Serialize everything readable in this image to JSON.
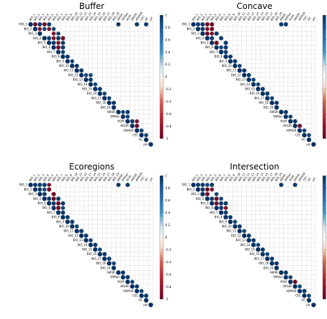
{
  "chart_data": [
    {
      "type": "heatmap",
      "subtype": "correlogram-upper-triangle",
      "title": "Buffer",
      "variables": [
        "BIO_1",
        "BIO_2",
        "BIO_3",
        "BIO_4",
        "BIO_5",
        "BIO_6",
        "BIO_7",
        "BIO_8",
        "BIO_9",
        "BIO_10",
        "BIO_11",
        "BIO_12",
        "BIO_13",
        "BIO_14",
        "BIO_15",
        "BIO_16",
        "BIO_17",
        "BIO_18",
        "BIO_19",
        "AWSR",
        "SRMax",
        "RGIR",
        "ARGIR",
        "ARMGR",
        "CEC",
        "OC",
        "pH"
      ],
      "strong_pairs": [
        {
          "pair": [
            0,
            1
          ],
          "r": -0.95
        },
        {
          "pair": [
            0,
            2
          ],
          "r": 0.95
        },
        {
          "pair": [
            0,
            3
          ],
          "r": -0.95
        },
        {
          "pair": [
            0,
            4
          ],
          "r": 0.95
        },
        {
          "pair": [
            1,
            2
          ],
          "r": -0.9
        },
        {
          "pair": [
            1,
            3
          ],
          "r": 0.9
        },
        {
          "pair": [
            1,
            4
          ],
          "r": -0.9
        },
        {
          "pair": [
            1,
            5
          ],
          "r": 0.9
        },
        {
          "pair": [
            2,
            5
          ],
          "r": -0.9
        },
        {
          "pair": [
            2,
            6
          ],
          "r": 0.9
        },
        {
          "pair": [
            3,
            4
          ],
          "r": 0.95
        },
        {
          "pair": [
            3,
            5
          ],
          "r": -0.9
        },
        {
          "pair": [
            3,
            6
          ],
          "r": 0.95
        },
        {
          "pair": [
            3,
            7
          ],
          "r": -0.95
        },
        {
          "pair": [
            4,
            5
          ],
          "r": 0.95
        },
        {
          "pair": [
            4,
            6
          ],
          "r": -0.9
        },
        {
          "pair": [
            4,
            7
          ],
          "r": 0.95
        },
        {
          "pair": [
            5,
            6
          ],
          "r": -0.95
        },
        {
          "pair": [
            5,
            7
          ],
          "r": 0.95
        },
        {
          "pair": [
            6,
            7
          ],
          "r": 0.9
        },
        {
          "pair": [
            7,
            8
          ],
          "r": 0.95
        },
        {
          "pair": [
            8,
            9
          ],
          "r": 0.9
        },
        {
          "pair": [
            9,
            10
          ],
          "r": 0.95
        },
        {
          "pair": [
            10,
            11
          ],
          "r": 0.95
        },
        {
          "pair": [
            11,
            12
          ],
          "r": 0.9
        },
        {
          "pair": [
            11,
            13
          ],
          "r": 0.9
        },
        {
          "pair": [
            12,
            13
          ],
          "r": 0.95
        },
        {
          "pair": [
            13,
            14
          ],
          "r": 0.9
        },
        {
          "pair": [
            14,
            15
          ],
          "r": 0.95
        },
        {
          "pair": [
            15,
            16
          ],
          "r": 0.9
        },
        {
          "pair": [
            16,
            17
          ],
          "r": 0.9
        },
        {
          "pair": [
            17,
            18
          ],
          "r": 0.95
        },
        {
          "pair": [
            19,
            20
          ],
          "r": 0.9
        },
        {
          "pair": [
            19,
            21
          ],
          "r": 0.95
        },
        {
          "pair": [
            20,
            21
          ],
          "r": 0.9
        },
        {
          "pair": [
            21,
            22
          ],
          "r": 0.95
        },
        {
          "pair": [
            21,
            23
          ],
          "r": -0.9
        },
        {
          "pair": [
            22,
            23
          ],
          "r": -0.95
        },
        {
          "pair": [
            23,
            24
          ],
          "r": 0.9
        },
        {
          "pair": [
            24,
            25
          ],
          "r": 0.9
        },
        {
          "pair": [
            0,
            19
          ],
          "r": 0.95
        },
        {
          "pair": [
            0,
            23
          ],
          "r": 0.95
        },
        {
          "pair": [
            0,
            25
          ],
          "r": 0.95
        }
      ],
      "colorbar": {
        "ticks": [
          "1",
          "0.8",
          "0.6",
          "0.4",
          "0.2",
          "0",
          "-0.2",
          "-0.4",
          "-0.6",
          "-0.8",
          "-1"
        ],
        "min": -1,
        "max": 1
      }
    },
    {
      "type": "heatmap",
      "subtype": "correlogram-upper-triangle",
      "title": "Concave",
      "variables": [
        "BIO_1",
        "BIO_2",
        "BIO_3",
        "BIO_4",
        "BIO_5",
        "BIO_6",
        "BIO_7",
        "BIO_8",
        "BIO_9",
        "BIO_10",
        "BIO_11",
        "BIO_12",
        "BIO_13",
        "BIO_14",
        "BIO_15",
        "BIO_16",
        "BIO_17",
        "BIO_18",
        "BIO_19",
        "AWSR",
        "SRMax",
        "RGIR",
        "ARGIR",
        "ARMGR",
        "CEC",
        "OC",
        "pH"
      ],
      "strong_pairs": [
        {
          "pair": [
            0,
            1
          ],
          "r": 0.95
        },
        {
          "pair": [
            0,
            2
          ],
          "r": 0.95
        },
        {
          "pair": [
            0,
            3
          ],
          "r": -0.95
        },
        {
          "pair": [
            0,
            4
          ],
          "r": -0.95
        },
        {
          "pair": [
            1,
            2
          ],
          "r": 0.95
        },
        {
          "pair": [
            1,
            3
          ],
          "r": -0.9
        },
        {
          "pair": [
            1,
            4
          ],
          "r": -0.95
        },
        {
          "pair": [
            2,
            3
          ],
          "r": -0.95
        },
        {
          "pair": [
            2,
            4
          ],
          "r": -0.9
        },
        {
          "pair": [
            2,
            5
          ],
          "r": 0.95
        },
        {
          "pair": [
            3,
            4
          ],
          "r": 0.95
        },
        {
          "pair": [
            3,
            6
          ],
          "r": 0.95
        },
        {
          "pair": [
            4,
            5
          ],
          "r": -0.95
        },
        {
          "pair": [
            4,
            7
          ],
          "r": 0.95
        },
        {
          "pair": [
            5,
            6
          ],
          "r": 0.9
        },
        {
          "pair": [
            5,
            7
          ],
          "r": 0.95
        },
        {
          "pair": [
            6,
            7
          ],
          "r": 0.95
        },
        {
          "pair": [
            7,
            8
          ],
          "r": 0.95
        },
        {
          "pair": [
            8,
            9
          ],
          "r": 0.95
        },
        {
          "pair": [
            9,
            10
          ],
          "r": 0.9
        },
        {
          "pair": [
            10,
            11
          ],
          "r": 0.95
        },
        {
          "pair": [
            11,
            12
          ],
          "r": 0.95
        },
        {
          "pair": [
            12,
            13
          ],
          "r": 0.9
        },
        {
          "pair": [
            13,
            14
          ],
          "r": 0.9
        },
        {
          "pair": [
            14,
            15
          ],
          "r": 0.95
        },
        {
          "pair": [
            15,
            16
          ],
          "r": 0.95
        },
        {
          "pair": [
            16,
            17
          ],
          "r": 0.9
        },
        {
          "pair": [
            17,
            18
          ],
          "r": 0.95
        },
        {
          "pair": [
            19,
            20
          ],
          "r": 0.95
        },
        {
          "pair": [
            20,
            21
          ],
          "r": 0.9
        },
        {
          "pair": [
            21,
            22
          ],
          "r": 0.95
        },
        {
          "pair": [
            22,
            23
          ],
          "r": -0.95
        },
        {
          "pair": [
            23,
            24
          ],
          "r": 0.9
        },
        {
          "pair": [
            24,
            25
          ],
          "r": 0.9
        },
        {
          "pair": [
            0,
            19
          ],
          "r": 0.95
        },
        {
          "pair": [
            0,
            20
          ],
          "r": 0.95
        }
      ],
      "colorbar": {
        "ticks": [
          "1",
          "0.8",
          "0.6",
          "0.4",
          "0.2",
          "0",
          "-0.2",
          "-0.4",
          "-0.6",
          "-0.8",
          "-1"
        ],
        "min": -1,
        "max": 1
      }
    },
    {
      "type": "heatmap",
      "subtype": "correlogram-upper-triangle",
      "title": "Ecoregions",
      "variables": [
        "BIO_1",
        "BIO_2",
        "BIO_3",
        "BIO_4",
        "BIO_5",
        "BIO_6",
        "BIO_7",
        "BIO_8",
        "BIO_9",
        "BIO_10",
        "BIO_11",
        "BIO_12",
        "BIO_13",
        "BIO_14",
        "BIO_15",
        "BIO_16",
        "BIO_17",
        "BIO_18",
        "BIO_19",
        "AWSR",
        "SRMax",
        "RGIR",
        "ARGIR",
        "ARMGR",
        "CEC",
        "OC",
        "pH"
      ],
      "strong_pairs": [
        {
          "pair": [
            0,
            1
          ],
          "r": 0.95
        },
        {
          "pair": [
            0,
            2
          ],
          "r": 0.95
        },
        {
          "pair": [
            0,
            3
          ],
          "r": 0.95
        },
        {
          "pair": [
            0,
            4
          ],
          "r": -0.9
        },
        {
          "pair": [
            1,
            2
          ],
          "r": 0.95
        },
        {
          "pair": [
            1,
            3
          ],
          "r": 0.9
        },
        {
          "pair": [
            1,
            4
          ],
          "r": -0.95
        },
        {
          "pair": [
            2,
            3
          ],
          "r": 0.95
        },
        {
          "pair": [
            2,
            5
          ],
          "r": -0.95
        },
        {
          "pair": [
            3,
            4
          ],
          "r": 0.95
        },
        {
          "pair": [
            3,
            5
          ],
          "r": -0.95
        },
        {
          "pair": [
            3,
            6
          ],
          "r": 0.95
        },
        {
          "pair": [
            4,
            5
          ],
          "r": 0.95
        },
        {
          "pair": [
            4,
            6
          ],
          "r": -0.95
        },
        {
          "pair": [
            4,
            7
          ],
          "r": 0.95
        },
        {
          "pair": [
            5,
            6
          ],
          "r": -0.95
        },
        {
          "pair": [
            5,
            7
          ],
          "r": 0.9
        },
        {
          "pair": [
            6,
            7
          ],
          "r": 0.95
        },
        {
          "pair": [
            7,
            8
          ],
          "r": 0.95
        },
        {
          "pair": [
            8,
            9
          ],
          "r": 0.95
        },
        {
          "pair": [
            9,
            10
          ],
          "r": 0.9
        },
        {
          "pair": [
            10,
            11
          ],
          "r": 0.95
        },
        {
          "pair": [
            11,
            12
          ],
          "r": 0.95
        },
        {
          "pair": [
            12,
            13
          ],
          "r": 0.9
        },
        {
          "pair": [
            13,
            14
          ],
          "r": 0.95
        },
        {
          "pair": [
            14,
            15
          ],
          "r": 0.9
        },
        {
          "pair": [
            15,
            16
          ],
          "r": 0.95
        },
        {
          "pair": [
            16,
            17
          ],
          "r": 0.95
        },
        {
          "pair": [
            17,
            18
          ],
          "r": 0.9
        },
        {
          "pair": [
            19,
            20
          ],
          "r": 0.95
        },
        {
          "pair": [
            20,
            21
          ],
          "r": 0.95
        },
        {
          "pair": [
            21,
            22
          ],
          "r": 0.9
        },
        {
          "pair": [
            22,
            23
          ],
          "r": 0.95
        },
        {
          "pair": [
            23,
            24
          ],
          "r": 0.9
        },
        {
          "pair": [
            24,
            25
          ],
          "r": 0.95
        },
        {
          "pair": [
            0,
            19
          ],
          "r": 0.95
        },
        {
          "pair": [
            0,
            21
          ],
          "r": 0.95
        }
      ],
      "colorbar": {
        "ticks": [
          "1",
          "0.8",
          "0.6",
          "0.4",
          "0.2",
          "0",
          "-0.2",
          "-0.4",
          "-0.6",
          "-0.8",
          "-1"
        ],
        "min": -1,
        "max": 1
      }
    },
    {
      "type": "heatmap",
      "subtype": "correlogram-upper-triangle",
      "title": "Intersection",
      "variables": [
        "BIO_1",
        "BIO_2",
        "BIO_3",
        "BIO_4",
        "BIO_5",
        "BIO_6",
        "BIO_7",
        "BIO_8",
        "BIO_9",
        "BIO_10",
        "BIO_11",
        "BIO_12",
        "BIO_13",
        "BIO_14",
        "BIO_15",
        "BIO_16",
        "BIO_17",
        "BIO_18",
        "BIO_19",
        "AWSR",
        "SRMax",
        "RGIR",
        "ARGIR",
        "ARMGR",
        "CEC",
        "OC",
        "pH"
      ],
      "strong_pairs": [
        {
          "pair": [
            0,
            1
          ],
          "r": 0.95
        },
        {
          "pair": [
            0,
            2
          ],
          "r": 0.95
        },
        {
          "pair": [
            0,
            3
          ],
          "r": 0.9
        },
        {
          "pair": [
            0,
            4
          ],
          "r": 0.95
        },
        {
          "pair": [
            1,
            2
          ],
          "r": 0.95
        },
        {
          "pair": [
            1,
            3
          ],
          "r": -0.95
        },
        {
          "pair": [
            1,
            4
          ],
          "r": -0.9
        },
        {
          "pair": [
            2,
            3
          ],
          "r": -0.95
        },
        {
          "pair": [
            2,
            5
          ],
          "r": 0.9
        },
        {
          "pair": [
            3,
            4
          ],
          "r": 0.95
        },
        {
          "pair": [
            3,
            5
          ],
          "r": -0.95
        },
        {
          "pair": [
            3,
            6
          ],
          "r": 0.9
        },
        {
          "pair": [
            4,
            5
          ],
          "r": -0.95
        },
        {
          "pair": [
            4,
            6
          ],
          "r": 0.95
        },
        {
          "pair": [
            4,
            7
          ],
          "r": 0.95
        },
        {
          "pair": [
            5,
            6
          ],
          "r": 0.95
        },
        {
          "pair": [
            5,
            7
          ],
          "r": -0.9
        },
        {
          "pair": [
            6,
            7
          ],
          "r": 0.95
        },
        {
          "pair": [
            7,
            8
          ],
          "r": 0.95
        },
        {
          "pair": [
            8,
            9
          ],
          "r": 0.9
        },
        {
          "pair": [
            9,
            10
          ],
          "r": 0.95
        },
        {
          "pair": [
            10,
            11
          ],
          "r": 0.9
        },
        {
          "pair": [
            11,
            12
          ],
          "r": 0.95
        },
        {
          "pair": [
            12,
            13
          ],
          "r": 0.95
        },
        {
          "pair": [
            13,
            14
          ],
          "r": 0.9
        },
        {
          "pair": [
            14,
            15
          ],
          "r": 0.95
        },
        {
          "pair": [
            15,
            16
          ],
          "r": 0.9
        },
        {
          "pair": [
            16,
            17
          ],
          "r": 0.95
        },
        {
          "pair": [
            17,
            18
          ],
          "r": 0.95
        },
        {
          "pair": [
            19,
            20
          ],
          "r": 0.95
        },
        {
          "pair": [
            20,
            21
          ],
          "r": 0.9
        },
        {
          "pair": [
            21,
            22
          ],
          "r": -0.95
        },
        {
          "pair": [
            22,
            23
          ],
          "r": 0.9
        },
        {
          "pair": [
            23,
            24
          ],
          "r": 0.95
        },
        {
          "pair": [
            24,
            25
          ],
          "r": 0.9
        },
        {
          "pair": [
            0,
            19
          ],
          "r": 0.95
        },
        {
          "pair": [
            0,
            22
          ],
          "r": 0.95
        }
      ],
      "colorbar": {
        "ticks": [
          "1",
          "0.8",
          "0.6",
          "0.4",
          "0.2",
          "0",
          "-0.2",
          "-0.4",
          "-0.6",
          "-0.8",
          "-1"
        ],
        "min": -1,
        "max": 1
      }
    }
  ],
  "colors": {
    "positive": "#053061",
    "positive_mid": "#4393c3",
    "neutral": "#f7f7f7",
    "negative_mid": "#d6604d",
    "negative": "#67001f",
    "grid": "#cfcfcf"
  }
}
